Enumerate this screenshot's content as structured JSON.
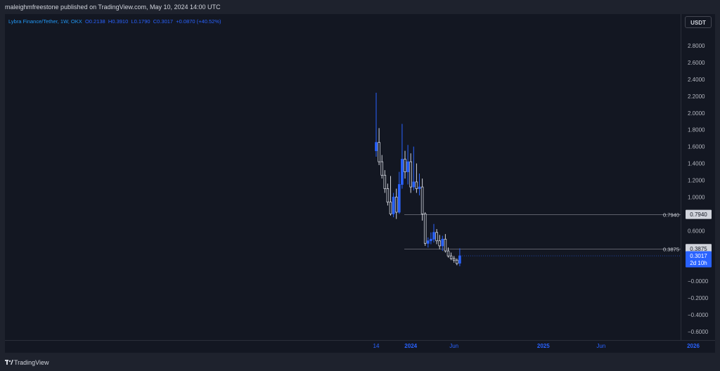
{
  "publisher_line": "maleighmfreestone published on TradingView.com, May 10, 2024 14:00 UTC",
  "legend": {
    "symbol": "Lybra Finance/Tether, 1W, OKX",
    "open": "O0.2138",
    "high": "H0.3910",
    "low": "L0.1790",
    "close": "C0.3017",
    "change": "+0.0870 (+40.52%)"
  },
  "currency_button": "USDT",
  "brand": "TradingView",
  "colors": {
    "background": "#131722",
    "up": "#2962ff",
    "down": "#d1d4dc",
    "current_price_badge": "#2962ff",
    "level_badge": "#d1d4dc"
  },
  "chart_data": {
    "type": "candlestick",
    "interval": "1W",
    "ylim": [
      -0.65,
      2.95
    ],
    "y_ticks": [
      "2.8000",
      "2.6000",
      "2.4000",
      "2.2000",
      "2.0000",
      "1.8000",
      "1.6000",
      "1.4000",
      "1.2000",
      "1.0000",
      "0.8000",
      "0.6000",
      "0.4000",
      "0.2000",
      "−0.0000",
      "−0.2000",
      "−0.4000",
      "−0.6000"
    ],
    "y_tick_values": [
      2.8,
      2.6,
      2.4,
      2.2,
      2.0,
      1.8,
      1.6,
      1.4,
      1.2,
      1.0,
      0.8,
      0.6,
      0.4,
      0.2,
      0.0,
      -0.2,
      -0.4,
      -0.6
    ],
    "x_ticks": [
      {
        "label": "14",
        "index": 0
      },
      {
        "label": "2024",
        "index": 12
      },
      {
        "label": "Jun",
        "index": 27
      },
      {
        "label": "2025",
        "index": 58
      },
      {
        "label": "Jun",
        "index": 78
      },
      {
        "label": "2026",
        "index": 110
      },
      {
        "label": "Ju",
        "index": 130
      }
    ],
    "horizontal_levels": [
      {
        "label": "0.7940",
        "value": 0.794
      },
      {
        "label": "0.3875",
        "value": 0.3875
      }
    ],
    "current_price": {
      "value": 0.3017,
      "label": "0.3017",
      "countdown": "2d 10h"
    },
    "candles": [
      {
        "o": 1.55,
        "h": 2.24,
        "l": 1.48,
        "c": 1.65
      },
      {
        "o": 1.65,
        "h": 1.82,
        "l": 1.38,
        "c": 1.42
      },
      {
        "o": 1.42,
        "h": 1.5,
        "l": 1.22,
        "c": 1.26
      },
      {
        "o": 1.26,
        "h": 1.32,
        "l": 1.05,
        "c": 1.1
      },
      {
        "o": 1.1,
        "h": 1.16,
        "l": 0.9,
        "c": 0.94
      },
      {
        "o": 0.94,
        "h": 1.25,
        "l": 0.78,
        "c": 0.8
      },
      {
        "o": 0.8,
        "h": 1.05,
        "l": 0.76,
        "c": 1.0
      },
      {
        "o": 1.0,
        "h": 1.1,
        "l": 0.74,
        "c": 0.82
      },
      {
        "o": 0.82,
        "h": 1.3,
        "l": 0.8,
        "c": 1.15
      },
      {
        "o": 1.15,
        "h": 1.87,
        "l": 1.1,
        "c": 1.45
      },
      {
        "o": 1.45,
        "h": 1.55,
        "l": 1.22,
        "c": 1.3
      },
      {
        "o": 1.3,
        "h": 1.62,
        "l": 1.15,
        "c": 1.42
      },
      {
        "o": 1.42,
        "h": 1.52,
        "l": 1.05,
        "c": 1.12
      },
      {
        "o": 1.12,
        "h": 1.6,
        "l": 1.08,
        "c": 1.18
      },
      {
        "o": 1.18,
        "h": 1.4,
        "l": 1.05,
        "c": 1.1
      },
      {
        "o": 1.1,
        "h": 1.28,
        "l": 1.02,
        "c": 1.12
      },
      {
        "o": 1.12,
        "h": 1.22,
        "l": 0.72,
        "c": 0.8
      },
      {
        "o": 0.8,
        "h": 0.82,
        "l": 0.42,
        "c": 0.45
      },
      {
        "o": 0.45,
        "h": 0.52,
        "l": 0.4,
        "c": 0.48
      },
      {
        "o": 0.48,
        "h": 0.58,
        "l": 0.44,
        "c": 0.5
      },
      {
        "o": 0.5,
        "h": 0.68,
        "l": 0.46,
        "c": 0.58
      },
      {
        "o": 0.58,
        "h": 0.62,
        "l": 0.44,
        "c": 0.48
      },
      {
        "o": 0.48,
        "h": 0.55,
        "l": 0.38,
        "c": 0.42
      },
      {
        "o": 0.42,
        "h": 0.54,
        "l": 0.36,
        "c": 0.5
      },
      {
        "o": 0.5,
        "h": 0.56,
        "l": 0.34,
        "c": 0.36
      },
      {
        "o": 0.36,
        "h": 0.4,
        "l": 0.28,
        "c": 0.3
      },
      {
        "o": 0.3,
        "h": 0.34,
        "l": 0.25,
        "c": 0.27
      },
      {
        "o": 0.27,
        "h": 0.3,
        "l": 0.22,
        "c": 0.25
      },
      {
        "o": 0.25,
        "h": 0.27,
        "l": 0.19,
        "c": 0.21
      },
      {
        "o": 0.2138,
        "h": 0.391,
        "l": 0.179,
        "c": 0.3017
      }
    ]
  }
}
